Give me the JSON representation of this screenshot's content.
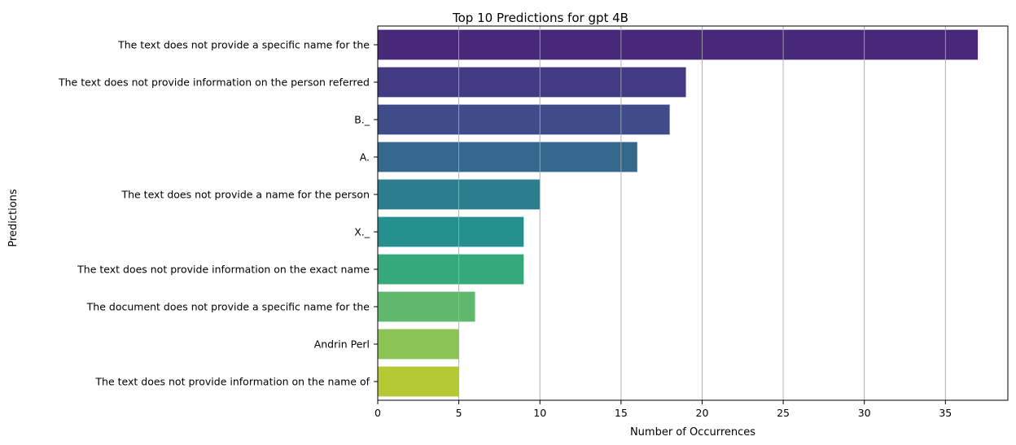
{
  "chart_data": {
    "type": "bar",
    "orientation": "horizontal",
    "title": "Top 10 Predictions for gpt 4B",
    "xlabel": "Number of Occurrences",
    "ylabel": "Predictions",
    "categories": [
      "The text does not provide a specific name for the",
      "The text does not provide information on the person referred",
      "B._",
      "A.",
      "The text does not provide a name for the person",
      "X._",
      "The text does not provide information on the exact name",
      "The document does not provide a specific name for the",
      "Andrin Perl",
      "The text does not provide information on the name of"
    ],
    "values": [
      37,
      19,
      18,
      16,
      10,
      9,
      9,
      6,
      5,
      5
    ],
    "colors": [
      "#482878",
      "#443a83",
      "#3e4c8a",
      "#35688d",
      "#2c7e8e",
      "#25908d",
      "#36a97a",
      "#5fb86c",
      "#8bc454",
      "#b5c935"
    ],
    "xlim": [
      0,
      38.85
    ],
    "xticks": [
      0,
      5,
      10,
      15,
      20,
      25,
      30,
      35
    ],
    "grid": {
      "x": true,
      "y": false
    },
    "grid_color": "#b0b0b0"
  }
}
